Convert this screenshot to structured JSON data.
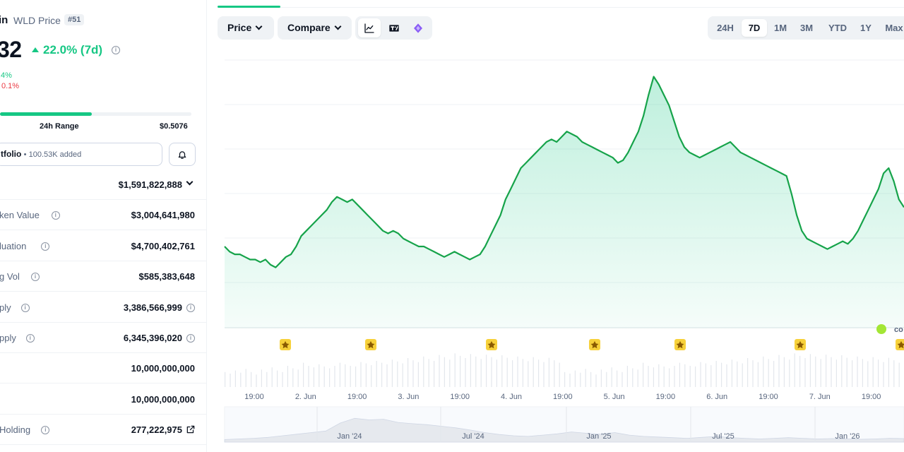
{
  "coin": {
    "name_tail": "in",
    "symbol_label": "WLD Price",
    "rank": "#51",
    "price_tail": "32",
    "change_7d": "22.0% (7d)",
    "sub_change_up": ".4%",
    "sub_change_down": "0.1%"
  },
  "range24h": {
    "label": "24h Range",
    "high": "$0.5076",
    "fill_fraction": 0.48
  },
  "portfolio": {
    "label": "tfolio",
    "added": "100.53K added"
  },
  "stats": [
    {
      "label": "",
      "value": "$1,591,822,888",
      "trailing": "chevron"
    },
    {
      "label": "ken Value",
      "value": "$3,004,641,980",
      "info": true
    },
    {
      "label": "luation",
      "value": "$4,700,402,761",
      "info": true
    },
    {
      "label": "g Vol",
      "value": "$585,383,648",
      "info": true
    },
    {
      "label": "ply",
      "value": "3,386,566,999",
      "info": true,
      "trailing": "info"
    },
    {
      "label": "pply",
      "value": "6,345,396,020",
      "info": true,
      "trailing": "info"
    },
    {
      "label": "",
      "value": "10,000,000,000"
    },
    {
      "label": "",
      "value": "10,000,000,000"
    },
    {
      "label": "Holding",
      "value": "277,222,975",
      "info": true,
      "trailing": "external"
    }
  ],
  "toolbar": {
    "price_label": "Price",
    "compare_label": "Compare",
    "chart_types": [
      "line-chart-icon",
      "tradingview-icon",
      "depth-chart-icon"
    ],
    "ranges": [
      "24H",
      "7D",
      "1M",
      "3M",
      "YTD",
      "1Y",
      "Max"
    ],
    "active_range": "7D"
  },
  "watermark": "co",
  "colors": {
    "accent_green": "#16c784",
    "red": "#ea3943",
    "line_green": "#16a34a",
    "event_yellow": "#f7d13b"
  },
  "chart_data": {
    "type": "line",
    "title": "",
    "xlabel": "",
    "ylabel": "",
    "x_ticks": [
      "19:00",
      "2. Jun",
      "19:00",
      "3. Jun",
      "19:00",
      "4. Jun",
      "19:00",
      "5. Jun",
      "19:00",
      "6. Jun",
      "19:00",
      "7. Jun",
      "19:00"
    ],
    "grid": true,
    "y_relative": [
      0.3,
      0.28,
      0.27,
      0.27,
      0.26,
      0.25,
      0.25,
      0.24,
      0.25,
      0.23,
      0.22,
      0.24,
      0.26,
      0.27,
      0.3,
      0.34,
      0.36,
      0.38,
      0.4,
      0.42,
      0.44,
      0.47,
      0.49,
      0.48,
      0.47,
      0.48,
      0.46,
      0.44,
      0.42,
      0.4,
      0.38,
      0.36,
      0.35,
      0.36,
      0.35,
      0.33,
      0.32,
      0.31,
      0.3,
      0.3,
      0.29,
      0.28,
      0.27,
      0.26,
      0.27,
      0.28,
      0.27,
      0.26,
      0.25,
      0.26,
      0.27,
      0.3,
      0.34,
      0.38,
      0.42,
      0.48,
      0.52,
      0.56,
      0.6,
      0.62,
      0.64,
      0.66,
      0.68,
      0.7,
      0.71,
      0.7,
      0.72,
      0.74,
      0.73,
      0.72,
      0.7,
      0.69,
      0.68,
      0.67,
      0.66,
      0.65,
      0.64,
      0.62,
      0.63,
      0.66,
      0.7,
      0.74,
      0.8,
      0.88,
      0.95,
      0.92,
      0.88,
      0.84,
      0.78,
      0.72,
      0.68,
      0.66,
      0.65,
      0.64,
      0.65,
      0.66,
      0.67,
      0.68,
      0.69,
      0.7,
      0.68,
      0.66,
      0.65,
      0.64,
      0.63,
      0.62,
      0.61,
      0.6,
      0.59,
      0.58,
      0.57,
      0.5,
      0.42,
      0.36,
      0.33,
      0.32,
      0.31,
      0.3,
      0.29,
      0.3,
      0.31,
      0.32,
      0.31,
      0.33,
      0.36,
      0.4,
      0.44,
      0.48,
      0.52,
      0.58,
      0.6,
      0.55,
      0.48,
      0.45
    ],
    "volume_relative": [
      0.3,
      0.25,
      0.35,
      0.28,
      0.4,
      0.3,
      0.22,
      0.38,
      0.3,
      0.45,
      0.35,
      0.3,
      0.5,
      0.42,
      0.38,
      0.6,
      0.5,
      0.45,
      0.55,
      0.48,
      0.42,
      0.5,
      0.6,
      0.55,
      0.5,
      0.48,
      0.62,
      0.58,
      0.52,
      0.66,
      0.6,
      0.55,
      0.7,
      0.64,
      0.58,
      0.75,
      0.68,
      0.62,
      0.8,
      0.72,
      0.66,
      0.85,
      0.78,
      0.7,
      0.9,
      0.82,
      0.75,
      0.88,
      0.8,
      0.72,
      0.86,
      0.78,
      0.7,
      0.84,
      0.76,
      0.68,
      0.8,
      0.72,
      0.65,
      0.78,
      0.7,
      0.62,
      0.76,
      0.68,
      0.6
    ],
    "events_count": 7,
    "navigator_ticks": [
      "Jan '24",
      "Jul '24",
      "Jan '25",
      "Jul '25",
      "Jan '26"
    ]
  }
}
